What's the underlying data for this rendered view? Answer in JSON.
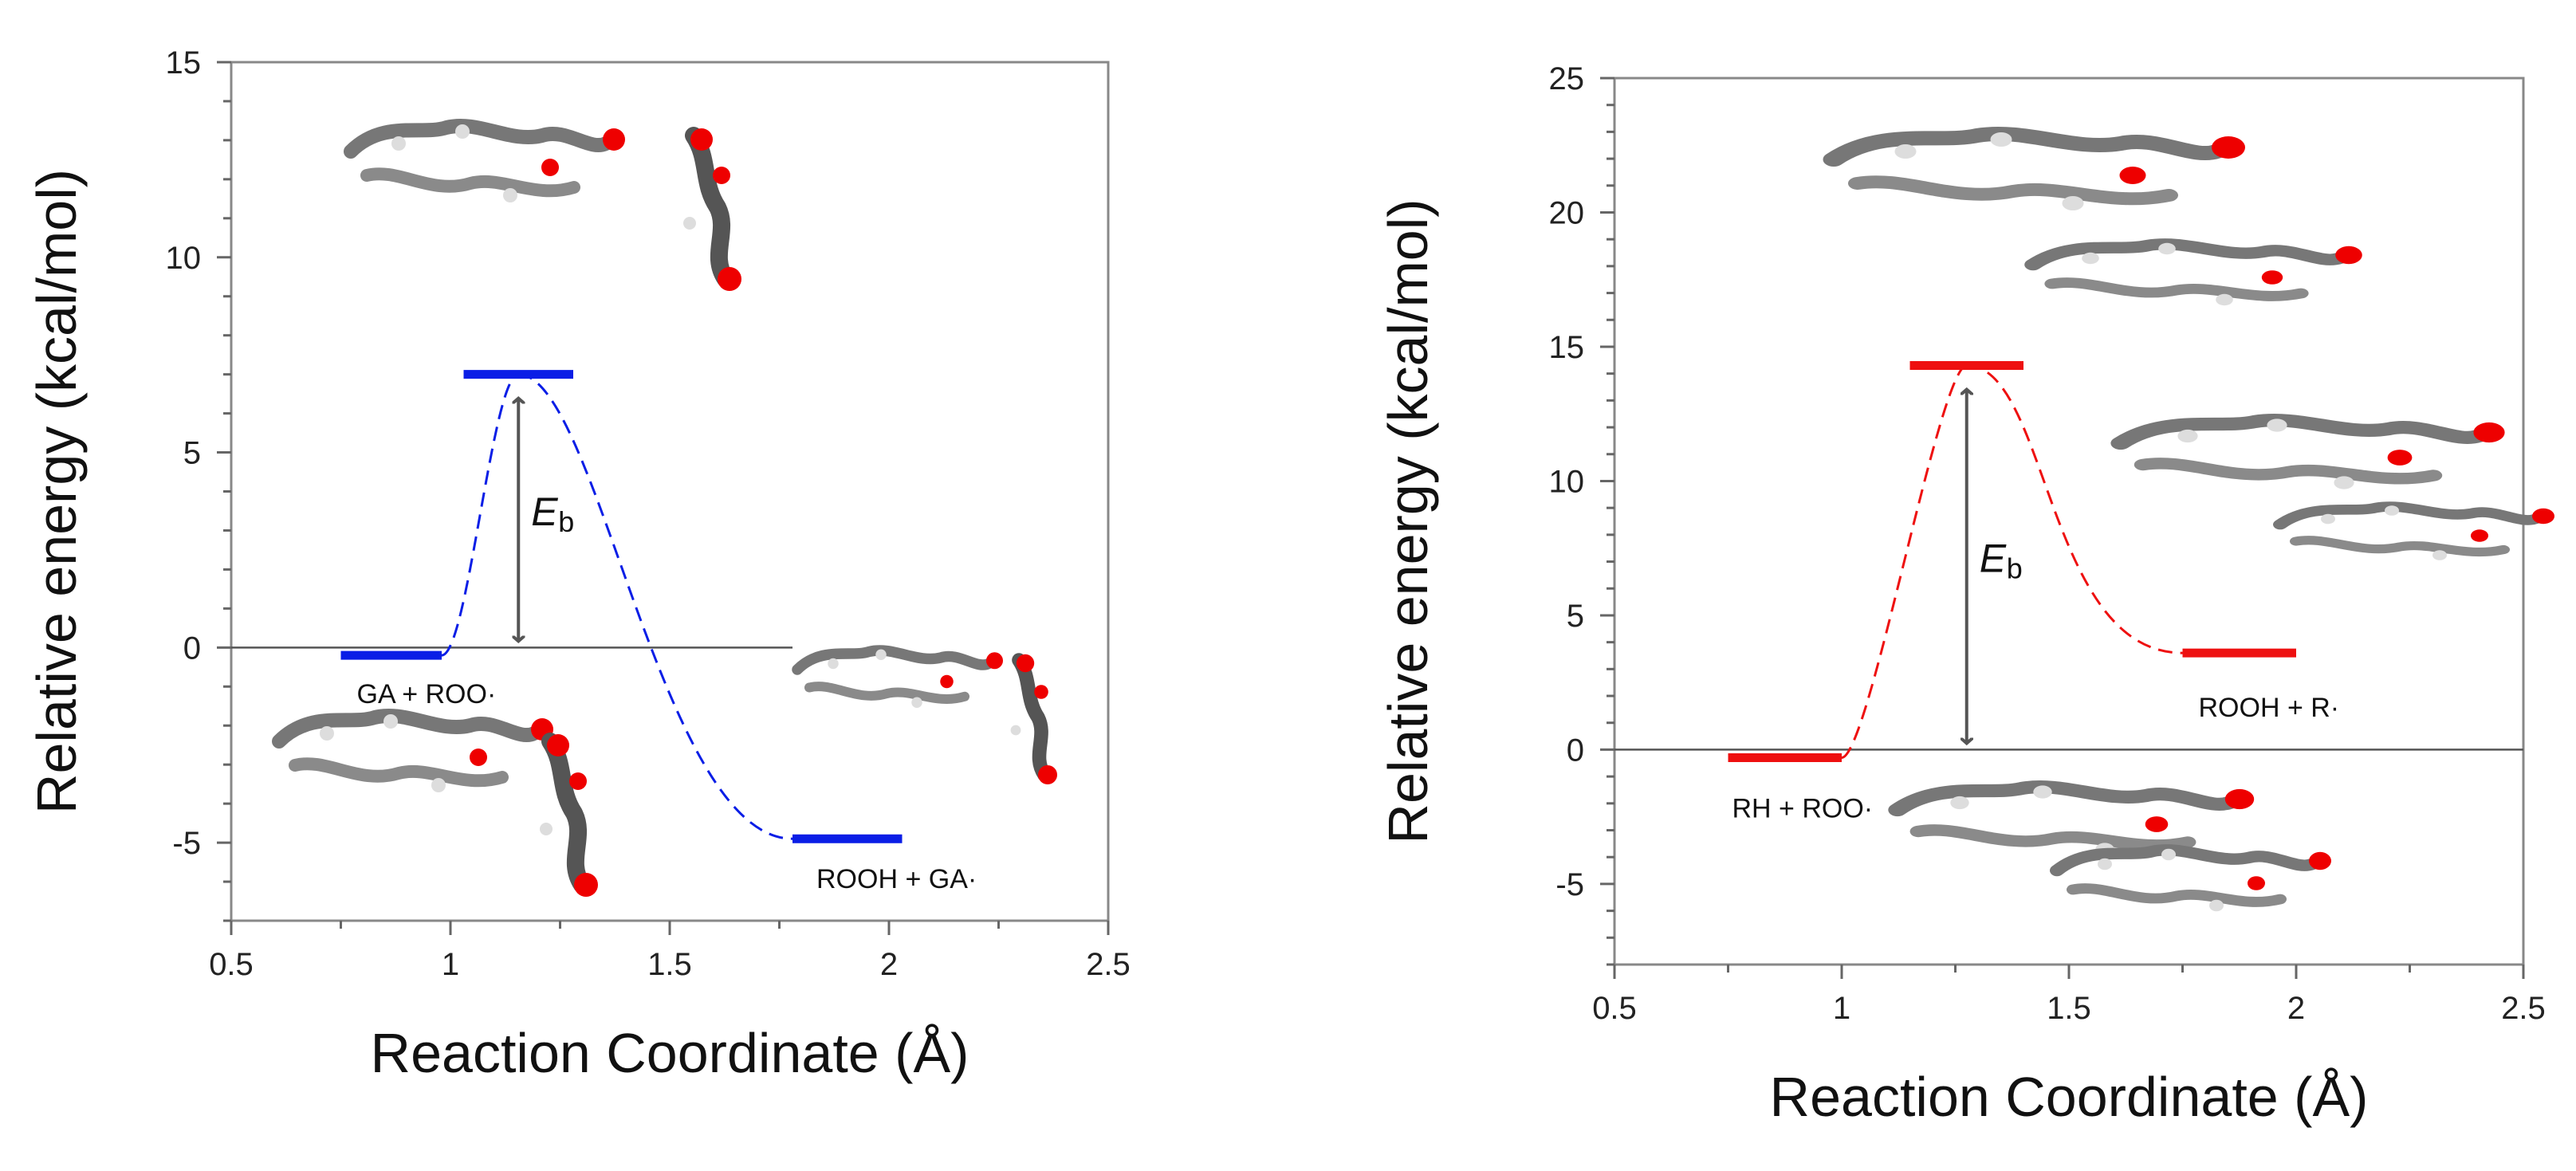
{
  "chart_data": [
    {
      "type": "line",
      "xlabel": "Reaction Coordinate (Å)",
      "ylabel": "Relative energy (kcal/mol)",
      "xlim": [
        0.5,
        2.5
      ],
      "ylim": [
        -7,
        15
      ],
      "xticks": [
        "0.5",
        "1",
        "1.5",
        "2",
        "2.5"
      ],
      "yticks": [
        "-5",
        "0",
        "5",
        "10",
        "15"
      ],
      "series_color": "#0a1ee6",
      "levels": [
        {
          "label": "GA + ROO·",
          "x": [
            0.75,
            0.98
          ],
          "y": -0.2
        },
        {
          "label": "",
          "x": [
            1.03,
            1.28
          ],
          "y": 7.0
        },
        {
          "label": "ROOH + GA·",
          "x": [
            1.78,
            2.03
          ],
          "y": -4.9
        }
      ],
      "barrier_label": "E",
      "barrier_sub": "b",
      "barrier_value": 7.0,
      "annotations": [
        "GA + ROO·",
        "ROOH + GA·"
      ]
    },
    {
      "type": "line",
      "xlabel": "Reaction Coordinate (Å)",
      "ylabel": "Relative energy (kcal/mol)",
      "xlim": [
        0.5,
        2.5
      ],
      "ylim": [
        -8,
        25
      ],
      "xticks": [
        "0.5",
        "1",
        "1.5",
        "2",
        "2.5"
      ],
      "yticks": [
        "-5",
        "0",
        "5",
        "10",
        "15",
        "20",
        "25"
      ],
      "series_color": "#ee1010",
      "levels": [
        {
          "label": "RH + ROO·",
          "x": [
            0.75,
            1.0
          ],
          "y": -0.3
        },
        {
          "label": "",
          "x": [
            1.15,
            1.4
          ],
          "y": 14.3
        },
        {
          "label": "ROOH + R·",
          "x": [
            1.75,
            2.0
          ],
          "y": 3.6
        }
      ],
      "barrier_label": "E",
      "barrier_sub": "b",
      "barrier_value": 14.3,
      "annotations": [
        "RH + ROO·",
        "ROOH + R·"
      ]
    }
  ]
}
